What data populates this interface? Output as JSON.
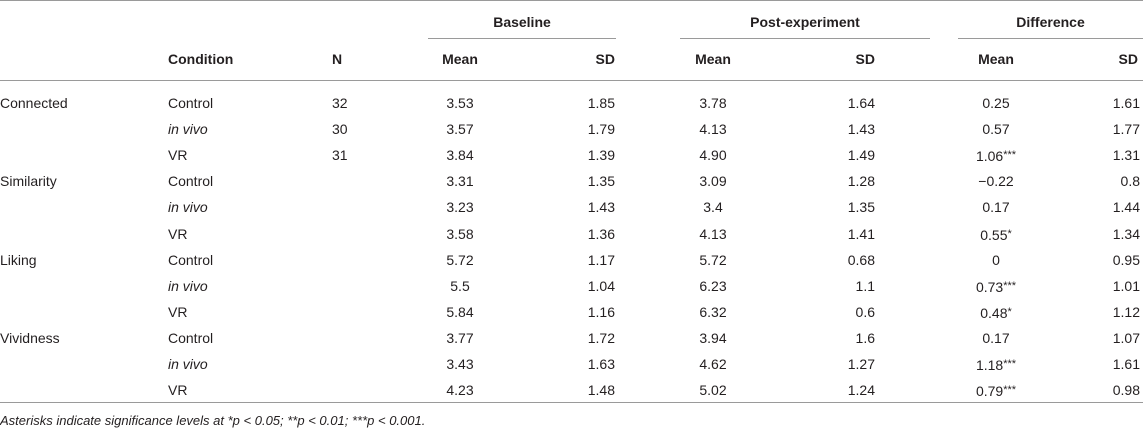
{
  "header": {
    "groups": [
      "Baseline",
      "Post-experiment",
      "Difference"
    ],
    "condition": "Condition",
    "n": "N",
    "mean": "Mean",
    "sd": "SD"
  },
  "rows": [
    {
      "measure": "Connected",
      "condition": "Control",
      "condition_italic": false,
      "n": "32",
      "b_mean": "3.53",
      "b_sd": "1.85",
      "p_mean": "3.78",
      "p_sd": "1.64",
      "d_mean": "0.25",
      "d_sig": "",
      "d_sd": "1.61"
    },
    {
      "measure": "",
      "condition": "in vivo",
      "condition_italic": true,
      "n": "30",
      "b_mean": "3.57",
      "b_sd": "1.79",
      "p_mean": "4.13",
      "p_sd": "1.43",
      "d_mean": "0.57",
      "d_sig": "",
      "d_sd": "1.77"
    },
    {
      "measure": "",
      "condition": "VR",
      "condition_italic": false,
      "n": "31",
      "b_mean": "3.84",
      "b_sd": "1.39",
      "p_mean": "4.90",
      "p_sd": "1.49",
      "d_mean": "1.06",
      "d_sig": "***",
      "d_sd": "1.31"
    },
    {
      "measure": "Similarity",
      "condition": "Control",
      "condition_italic": false,
      "n": "",
      "b_mean": "3.31",
      "b_sd": "1.35",
      "p_mean": "3.09",
      "p_sd": "1.28",
      "d_mean": "−0.22",
      "d_sig": "",
      "d_sd": "0.8"
    },
    {
      "measure": "",
      "condition": "in vivo",
      "condition_italic": true,
      "n": "",
      "b_mean": "3.23",
      "b_sd": "1.43",
      "p_mean": "3.4",
      "p_sd": "1.35",
      "d_mean": "0.17",
      "d_sig": "",
      "d_sd": "1.44"
    },
    {
      "measure": "",
      "condition": "VR",
      "condition_italic": false,
      "n": "",
      "b_mean": "3.58",
      "b_sd": "1.36",
      "p_mean": "4.13",
      "p_sd": "1.41",
      "d_mean": "0.55",
      "d_sig": "*",
      "d_sd": "1.34"
    },
    {
      "measure": "Liking",
      "condition": "Control",
      "condition_italic": false,
      "n": "",
      "b_mean": "5.72",
      "b_sd": "1.17",
      "p_mean": "5.72",
      "p_sd": "0.68",
      "d_mean": "0",
      "d_sig": "",
      "d_sd": "0.95"
    },
    {
      "measure": "",
      "condition": "in vivo",
      "condition_italic": true,
      "n": "",
      "b_mean": "5.5",
      "b_sd": "1.04",
      "p_mean": "6.23",
      "p_sd": "1.1",
      "d_mean": "0.73",
      "d_sig": "***",
      "d_sd": "1.01"
    },
    {
      "measure": "",
      "condition": "VR",
      "condition_italic": false,
      "n": "",
      "b_mean": "5.84",
      "b_sd": "1.16",
      "p_mean": "6.32",
      "p_sd": "0.6",
      "d_mean": "0.48",
      "d_sig": "*",
      "d_sd": "1.12"
    },
    {
      "measure": "Vividness",
      "condition": "Control",
      "condition_italic": false,
      "n": "",
      "b_mean": "3.77",
      "b_sd": "1.72",
      "p_mean": "3.94",
      "p_sd": "1.6",
      "d_mean": "0.17",
      "d_sig": "",
      "d_sd": "1.07"
    },
    {
      "measure": "",
      "condition": "in vivo",
      "condition_italic": true,
      "n": "",
      "b_mean": "3.43",
      "b_sd": "1.63",
      "p_mean": "4.62",
      "p_sd": "1.27",
      "d_mean": "1.18",
      "d_sig": "***",
      "d_sd": "1.61"
    },
    {
      "measure": "",
      "condition": "VR",
      "condition_italic": false,
      "n": "",
      "b_mean": "4.23",
      "b_sd": "1.48",
      "p_mean": "5.02",
      "p_sd": "1.24",
      "d_mean": "0.79",
      "d_sig": "***",
      "d_sd": "0.98"
    }
  ],
  "footnote": {
    "prefix": "Asterisks indicate significance levels at *",
    "p1": "p",
    "t1": " < 0.05; **",
    "p2": "p",
    "t2": " < 0.01; ***",
    "p3": "p",
    "t3": " < 0.001."
  }
}
